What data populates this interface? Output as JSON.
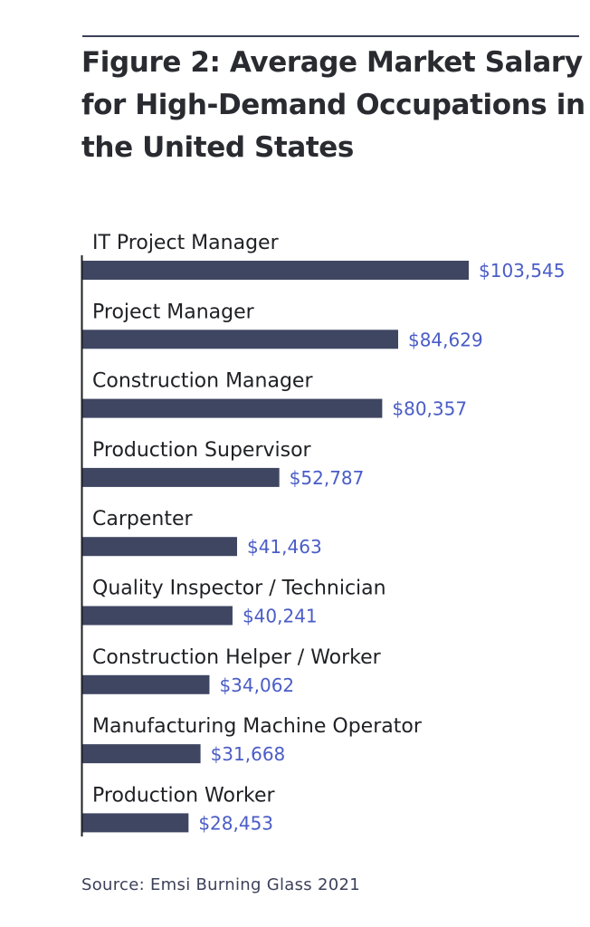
{
  "title": "Figure 2: Average Market Salary for High-Demand Occupations in the United States",
  "source": "Source: Emsi Burning Glass 2021",
  "colors": {
    "bar": "#3f4662",
    "value_label": "#4a5cc7",
    "category_label": "#1f2024",
    "axis": "#1f2024",
    "rule": "#3c4159"
  },
  "chart_data": {
    "type": "bar",
    "orientation": "horizontal",
    "title": "Figure 2: Average Market Salary for High-Demand Occupations in the United States",
    "categories": [
      "IT Project Manager",
      "Project Manager",
      "Construction Manager",
      "Production Supervisor",
      "Carpenter",
      "Quality Inspector / Technician",
      "Construction Helper / Worker",
      "Manufacturing Machine Operator",
      "Production Worker"
    ],
    "values": [
      103545,
      84629,
      80357,
      52787,
      41463,
      40241,
      34062,
      31668,
      28453
    ],
    "value_labels": [
      "$103,545",
      "$84,629",
      "$80,357",
      "$52,787",
      "$41,463",
      "$40,241",
      "$34,062",
      "$31,668",
      "$28,453"
    ],
    "xlim": [
      0,
      103545
    ],
    "grid": false,
    "legend": "none"
  }
}
